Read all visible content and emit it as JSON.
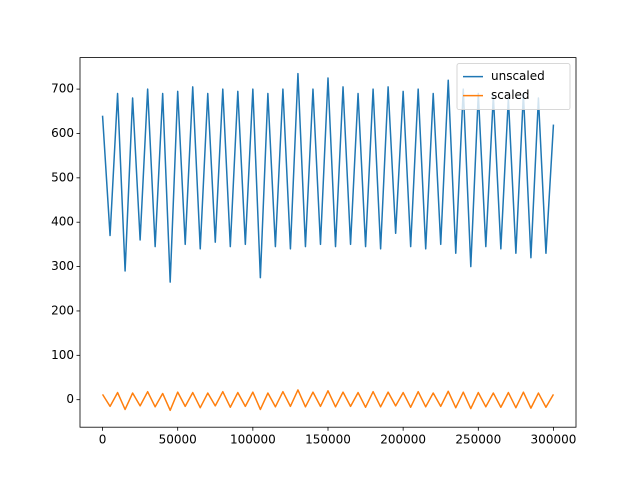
{
  "chart_data": {
    "type": "line",
    "x": [
      0,
      5000,
      10000,
      15000,
      20000,
      25000,
      30000,
      35000,
      40000,
      45000,
      50000,
      55000,
      60000,
      65000,
      70000,
      75000,
      80000,
      85000,
      90000,
      95000,
      100000,
      105000,
      110000,
      115000,
      120000,
      125000,
      130000,
      135000,
      140000,
      145000,
      150000,
      155000,
      160000,
      165000,
      170000,
      175000,
      180000,
      185000,
      190000,
      195000,
      200000,
      205000,
      210000,
      215000,
      220000,
      225000,
      230000,
      235000,
      240000,
      245000,
      250000,
      255000,
      260000,
      265000,
      270000,
      275000,
      280000,
      285000,
      290000,
      295000,
      300000
    ],
    "series": [
      {
        "name": "unscaled",
        "color": "#1f77b4",
        "values": [
          640,
          370,
          690,
          290,
          680,
          360,
          700,
          345,
          690,
          265,
          695,
          350,
          705,
          340,
          690,
          355,
          700,
          345,
          695,
          350,
          700,
          275,
          690,
          345,
          700,
          340,
          735,
          345,
          700,
          350,
          725,
          345,
          705,
          350,
          690,
          345,
          700,
          340,
          705,
          375,
          695,
          345,
          700,
          340,
          690,
          350,
          720,
          330,
          700,
          300,
          690,
          345,
          685,
          340,
          680,
          330,
          690,
          320,
          680,
          330,
          620
        ]
      },
      {
        "name": "scaled",
        "color": "#ff7f0e",
        "values": [
          12,
          -15,
          16,
          -22,
          15,
          -14,
          18,
          -16,
          14,
          -24,
          17,
          -15,
          16,
          -18,
          15,
          -14,
          18,
          -17,
          16,
          -15,
          17,
          -22,
          15,
          -16,
          18,
          -15,
          22,
          -16,
          17,
          -15,
          20,
          -16,
          17,
          -15,
          16,
          -17,
          18,
          -16,
          17,
          -14,
          16,
          -17,
          18,
          -16,
          15,
          -15,
          19,
          -18,
          17,
          -20,
          16,
          -16,
          15,
          -17,
          16,
          -18,
          17,
          -19,
          15,
          -17,
          12
        ]
      }
    ],
    "xlim": [
      -15000,
      315000
    ],
    "ylim": [
      -62,
      771
    ],
    "xticks": [
      0,
      50000,
      100000,
      150000,
      200000,
      250000,
      300000
    ],
    "yticks": [
      0,
      100,
      200,
      300,
      400,
      500,
      600,
      700
    ],
    "legend": "upper right"
  }
}
